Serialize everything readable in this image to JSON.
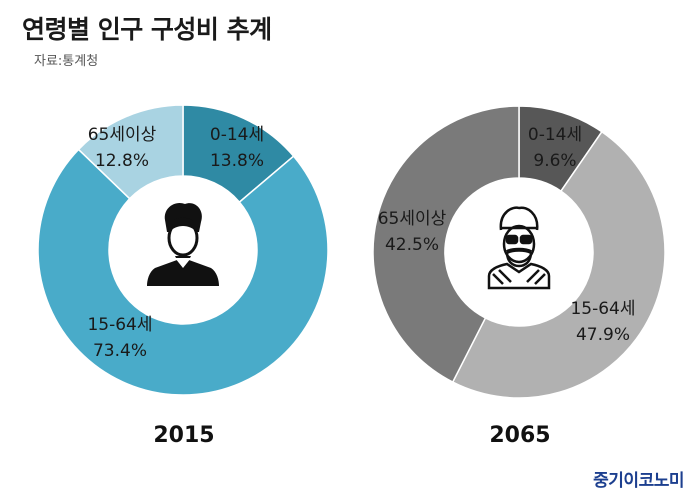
{
  "header": {
    "title": "연령별 인구 구성비 추계",
    "source": "자료:통계청"
  },
  "brand": "중기이코노미",
  "colors": {
    "c2015": [
      "#2f8aa4",
      "#49abc9",
      "#a9d3e2"
    ],
    "c2065": [
      "#575757",
      "#b1b1b1",
      "#7a7a7a"
    ]
  },
  "chart_data": [
    {
      "type": "pie",
      "title": "2015",
      "categories": [
        "0-14세",
        "15-64세",
        "65세이상"
      ],
      "values": [
        13.8,
        73.4,
        12.8
      ],
      "value_labels": [
        "13.8%",
        "73.4%",
        "12.8%"
      ],
      "icon": "young-person-icon"
    },
    {
      "type": "pie",
      "title": "2065",
      "categories": [
        "0-14세",
        "15-64세",
        "65세이상"
      ],
      "values": [
        9.6,
        47.9,
        42.5
      ],
      "value_labels": [
        "9.6%",
        "47.9%",
        "42.5%"
      ],
      "icon": "elderly-person-icon"
    }
  ]
}
